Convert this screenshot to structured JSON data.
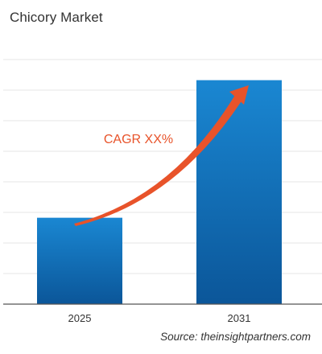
{
  "title": "Chicory Market",
  "source": "Source: theinsightpartners.com",
  "annotation": "CAGR XX%",
  "colors": {
    "bar_top": "#1a87d2",
    "bar_bottom": "#0b5699",
    "arrow": "#e8532a",
    "annotation": "#e8532a",
    "grid": "#e6e6e6",
    "axis": "#555555",
    "text": "#333333"
  },
  "chart_data": {
    "type": "bar",
    "title": "Chicory Market",
    "categories": [
      "2025",
      "2031"
    ],
    "values": [
      27,
      70
    ],
    "xlabel": "",
    "ylabel": "",
    "ylim": [
      0,
      85
    ],
    "grid": true,
    "legend": "none",
    "annotations": [
      "CAGR XX%"
    ]
  }
}
